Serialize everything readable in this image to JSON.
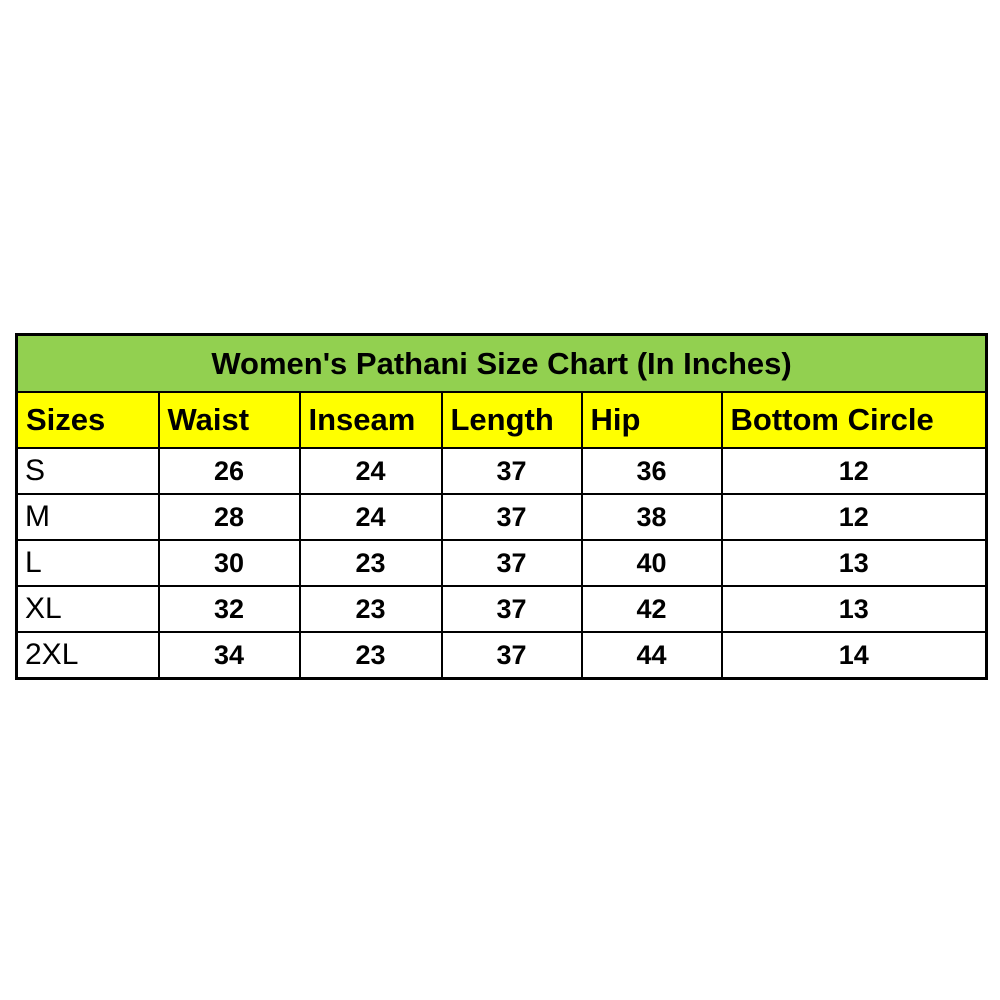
{
  "colors": {
    "title_bg": "#92d050",
    "header_bg": "#ffff00",
    "row_bg": "#ffffff",
    "border": "#000000",
    "text": "#000000"
  },
  "chart_data": {
    "type": "table",
    "title": "Women's Pathani Size Chart (In Inches)",
    "columns": [
      "Sizes",
      "Waist",
      "Inseam",
      "Length",
      "Hip",
      "Bottom Circle"
    ],
    "rows": [
      [
        "S",
        26,
        24,
        37,
        36,
        12
      ],
      [
        "M",
        28,
        24,
        37,
        38,
        12
      ],
      [
        "L",
        30,
        23,
        37,
        40,
        13
      ],
      [
        "XL",
        32,
        23,
        37,
        42,
        13
      ],
      [
        "2XL",
        34,
        23,
        37,
        44,
        14
      ]
    ],
    "units": "inches"
  }
}
